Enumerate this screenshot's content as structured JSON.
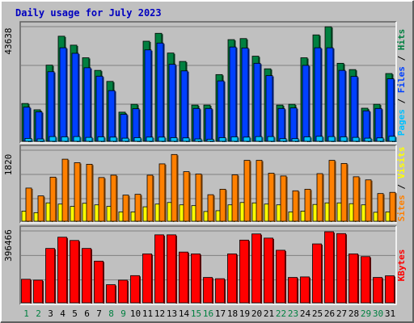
{
  "title": "Daily usage for July 2023",
  "colors": {
    "frame_bg": "#c0c0c0",
    "title_text": "#0000c0",
    "weekday_label": "#000000",
    "weekend_label": "#008040",
    "hits": "#008040",
    "files": "#0040ff",
    "pages": "#00c0ff",
    "visits": "#ffff00",
    "sites": "#ff8000",
    "kbytes": "#ff0000"
  },
  "chart_data": [
    {
      "type": "bar",
      "panel": "requests",
      "max_label": "43638",
      "ylim": [
        0,
        43638
      ],
      "legend": [
        "Pages",
        "Files",
        "Hits"
      ],
      "days": [
        "1",
        "2",
        "3",
        "4",
        "5",
        "6",
        "7",
        "8",
        "9",
        "10",
        "11",
        "12",
        "13",
        "14",
        "15",
        "16",
        "17",
        "18",
        "19",
        "20",
        "21",
        "22",
        "23",
        "24",
        "25",
        "26",
        "27",
        "28",
        "29",
        "30",
        "31"
      ],
      "weekend_days": [
        "1",
        "2",
        "8",
        "9",
        "15",
        "16",
        "22",
        "23",
        "29",
        "30"
      ],
      "series": [
        {
          "name": "Hits",
          "values": [
            14400,
            12000,
            29000,
            40000,
            36600,
            31800,
            27000,
            22800,
            11100,
            14100,
            38100,
            41100,
            33600,
            30400,
            13800,
            13800,
            25400,
            38700,
            39100,
            32400,
            27600,
            13800,
            14100,
            31800,
            40500,
            43600,
            29700,
            27300,
            12600,
            14100,
            25800
          ]
        },
        {
          "name": "Files",
          "values": [
            13000,
            11200,
            26500,
            35600,
            33500,
            28000,
            24800,
            19300,
            10300,
            12400,
            34800,
            37400,
            29300,
            26800,
            12500,
            12500,
            23000,
            35900,
            35500,
            29700,
            25000,
            12500,
            12700,
            28900,
            35600,
            35600,
            27000,
            24700,
            11600,
            12500,
            23800
          ]
        },
        {
          "name": "Pages",
          "values": [
            1100,
            900,
            1800,
            1700,
            1800,
            1500,
            1700,
            1600,
            1200,
            1400,
            1600,
            1600,
            1400,
            1300,
            900,
            800,
            1400,
            1700,
            1600,
            1800,
            1800,
            1000,
            1000,
            1700,
            1900,
            1800,
            1700,
            1500,
            1200,
            1300,
            1900
          ]
        }
      ]
    },
    {
      "type": "bar",
      "panel": "visitors",
      "max_label": "1820",
      "ylim": [
        0,
        1820
      ],
      "legend": [
        "Sites",
        "Visits"
      ],
      "days": [
        "1",
        "2",
        "3",
        "4",
        "5",
        "6",
        "7",
        "8",
        "9",
        "10",
        "11",
        "12",
        "13",
        "14",
        "15",
        "16",
        "17",
        "18",
        "19",
        "20",
        "21",
        "22",
        "23",
        "24",
        "25",
        "26",
        "27",
        "28",
        "29",
        "30",
        "31"
      ],
      "weekend_days": [
        "1",
        "2",
        "8",
        "9",
        "15",
        "16",
        "22",
        "23",
        "29",
        "30"
      ],
      "series": [
        {
          "name": "Sites",
          "values": [
            850,
            650,
            1130,
            1590,
            1500,
            1460,
            1120,
            1180,
            670,
            690,
            1180,
            1470,
            1710,
            1270,
            1210,
            680,
            820,
            1190,
            1560,
            1560,
            1230,
            1160,
            780,
            820,
            1220,
            1560,
            1480,
            1140,
            1060,
            710,
            740
          ]
        },
        {
          "name": "Visits",
          "values": [
            260,
            220,
            470,
            440,
            380,
            460,
            420,
            380,
            240,
            240,
            370,
            440,
            480,
            420,
            400,
            250,
            270,
            420,
            480,
            470,
            440,
            420,
            240,
            260,
            430,
            470,
            470,
            450,
            420,
            230,
            240
          ]
        }
      ]
    },
    {
      "type": "bar",
      "panel": "kbytes",
      "max_label": "396466",
      "ylim": [
        0,
        396466
      ],
      "legend": [
        "KBytes"
      ],
      "days": [
        "1",
        "2",
        "3",
        "4",
        "5",
        "6",
        "7",
        "8",
        "9",
        "10",
        "11",
        "12",
        "13",
        "14",
        "15",
        "16",
        "17",
        "18",
        "19",
        "20",
        "21",
        "22",
        "23",
        "24",
        "25",
        "26",
        "27",
        "28",
        "29",
        "30",
        "31"
      ],
      "weekend_days": [
        "1",
        "2",
        "8",
        "9",
        "15",
        "16",
        "22",
        "23",
        "29",
        "30"
      ],
      "series": [
        {
          "name": "KBytes",
          "values": [
            130000,
            125000,
            300000,
            362000,
            344000,
            300000,
            230000,
            100000,
            125000,
            150000,
            270000,
            375000,
            375000,
            280000,
            270000,
            140000,
            133000,
            270000,
            346000,
            380000,
            357000,
            290000,
            140000,
            143000,
            325000,
            392000,
            382000,
            270000,
            255000,
            140000,
            149000
          ]
        }
      ]
    }
  ]
}
